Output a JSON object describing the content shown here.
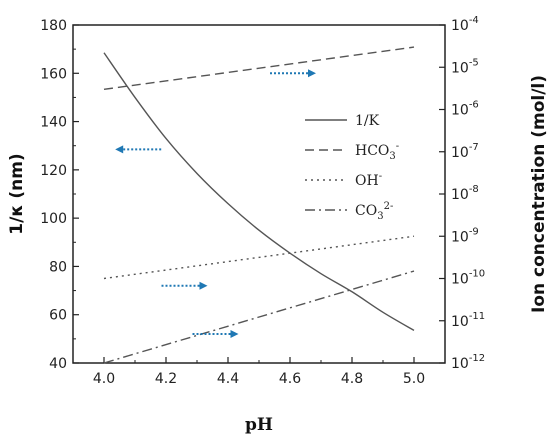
{
  "chart_data": {
    "type": "line",
    "xlabel": "pH",
    "ylabel_left": "1/κ (nm)",
    "ylabel_right": "Ion concentration (mol/l)",
    "xlim": [
      3.9,
      5.1
    ],
    "ylim_left": [
      40,
      180
    ],
    "ylim_right_log10": [
      -12,
      -4
    ],
    "right_axis_scale": "log",
    "x_ticks": [
      "4.0",
      "4.2",
      "4.4",
      "4.6",
      "4.8",
      "5.0"
    ],
    "y_left_ticks": [
      "40",
      "60",
      "80",
      "100",
      "120",
      "140",
      "160",
      "180"
    ],
    "y_right_ticks": [
      {
        "base": "10",
        "exp": "-12"
      },
      {
        "base": "10",
        "exp": "-11"
      },
      {
        "base": "10",
        "exp": "-10"
      },
      {
        "base": "10",
        "exp": "-9"
      },
      {
        "base": "10",
        "exp": "-8"
      },
      {
        "base": "10",
        "exp": "-7"
      },
      {
        "base": "10",
        "exp": "-6"
      },
      {
        "base": "10",
        "exp": "-5"
      },
      {
        "base": "10",
        "exp": "-4"
      }
    ],
    "series": [
      {
        "name": "1/K",
        "axis": "left",
        "style": "solid",
        "x": [
          4.0,
          4.1,
          4.2,
          4.3,
          4.4,
          4.5,
          4.6,
          4.7,
          4.8,
          4.9,
          5.0
        ],
        "y": [
          168.5,
          150,
          133,
          118.5,
          106,
          95,
          85.5,
          77,
          69.5,
          61,
          53.5
        ]
      },
      {
        "name": "HCO3-",
        "axis": "right",
        "style": "dashed",
        "x": [
          4.0,
          5.0
        ],
        "y": [
          3e-06,
          3e-05
        ]
      },
      {
        "name": "OH-",
        "axis": "right",
        "style": "dotted",
        "x": [
          4.0,
          5.0
        ],
        "y": [
          1e-10,
          1e-09
        ]
      },
      {
        "name": "CO3 2-",
        "axis": "right",
        "style": "dashdot",
        "x": [
          4.0,
          5.0
        ],
        "y": [
          1e-12,
          1.5e-10
        ]
      }
    ],
    "legend": {
      "placement": "right-middle",
      "items": [
        {
          "label": "1/K",
          "sub": "",
          "sup": "",
          "style": "solid"
        },
        {
          "label": "HCO",
          "sub": "3",
          "sup": "-",
          "style": "dashed"
        },
        {
          "label": "OH",
          "sub": "",
          "sup": "-",
          "style": "dotted"
        },
        {
          "label": "CO",
          "sub": "3",
          "sup": "2-",
          "style": "dashdot"
        }
      ]
    },
    "annotations": [
      {
        "type": "arrow",
        "direction": "right",
        "x": 4.6,
        "y_left": 160
      },
      {
        "type": "arrow",
        "direction": "left",
        "x": 4.12,
        "y_left": 128.5
      },
      {
        "type": "arrow",
        "direction": "right",
        "x": 4.25,
        "y_left": 72
      },
      {
        "type": "arrow",
        "direction": "right",
        "x": 4.35,
        "y_left": 52
      }
    ],
    "colors": {
      "line": "#555555",
      "arrow": "#1f78b4",
      "axis": "#222222"
    },
    "grid": false
  }
}
